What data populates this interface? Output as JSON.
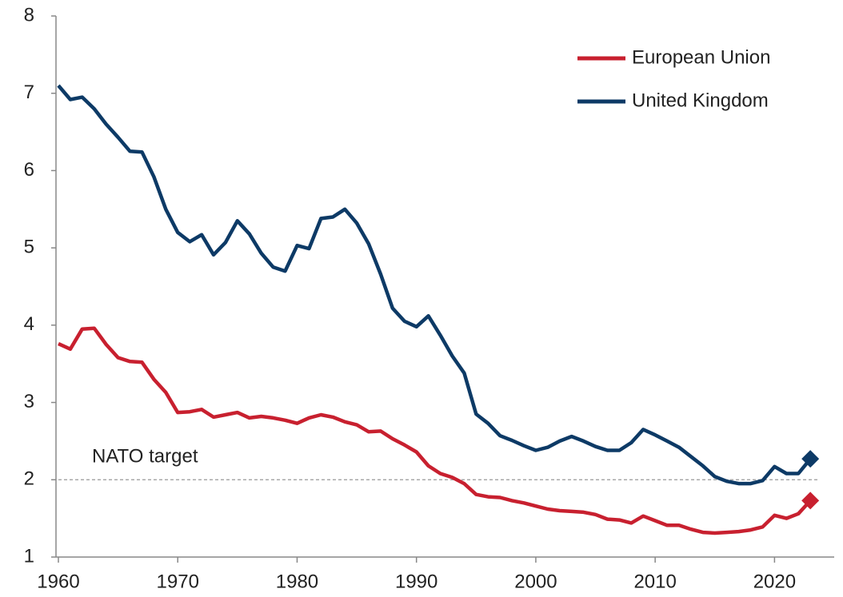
{
  "chart_data": {
    "type": "line",
    "x": [
      1960,
      1961,
      1962,
      1963,
      1964,
      1965,
      1966,
      1967,
      1968,
      1969,
      1970,
      1971,
      1972,
      1973,
      1974,
      1975,
      1976,
      1977,
      1978,
      1979,
      1980,
      1981,
      1982,
      1983,
      1984,
      1985,
      1986,
      1987,
      1988,
      1989,
      1990,
      1991,
      1992,
      1993,
      1994,
      1995,
      1996,
      1997,
      1998,
      1999,
      2000,
      2001,
      2002,
      2003,
      2004,
      2005,
      2006,
      2007,
      2008,
      2009,
      2010,
      2011,
      2012,
      2013,
      2014,
      2015,
      2016,
      2017,
      2018,
      2019,
      2020,
      2021,
      2022,
      2023
    ],
    "series": [
      {
        "name": "European Union",
        "color": "#c8202f",
        "values": [
          3.76,
          3.69,
          3.95,
          3.96,
          3.75,
          3.58,
          3.53,
          3.52,
          3.3,
          3.13,
          2.87,
          2.88,
          2.91,
          2.81,
          2.84,
          2.87,
          2.8,
          2.82,
          2.8,
          2.77,
          2.73,
          2.8,
          2.84,
          2.81,
          2.75,
          2.71,
          2.62,
          2.63,
          2.53,
          2.45,
          2.36,
          2.18,
          2.08,
          2.03,
          1.95,
          1.81,
          1.78,
          1.77,
          1.73,
          1.7,
          1.66,
          1.62,
          1.6,
          1.59,
          1.58,
          1.55,
          1.49,
          1.48,
          1.44,
          1.53,
          1.47,
          1.41,
          1.41,
          1.36,
          1.32,
          1.31,
          1.32,
          1.33,
          1.35,
          1.39,
          1.54,
          1.5,
          1.56,
          1.73
        ]
      },
      {
        "name": "United Kingdom",
        "color": "#0d3a66",
        "values": [
          7.1,
          6.92,
          6.95,
          6.8,
          6.6,
          6.43,
          6.25,
          6.24,
          5.92,
          5.5,
          5.2,
          5.08,
          5.17,
          4.91,
          5.07,
          5.35,
          5.18,
          4.93,
          4.75,
          4.7,
          5.03,
          4.99,
          5.38,
          5.4,
          5.5,
          5.32,
          5.05,
          4.66,
          4.22,
          4.05,
          3.98,
          4.12,
          3.87,
          3.6,
          3.38,
          2.85,
          2.73,
          2.57,
          2.51,
          2.44,
          2.38,
          2.42,
          2.5,
          2.56,
          2.5,
          2.43,
          2.38,
          2.38,
          2.48,
          2.65,
          2.58,
          2.5,
          2.42,
          2.3,
          2.18,
          2.04,
          1.98,
          1.95,
          1.95,
          1.99,
          2.17,
          2.08,
          2.08,
          2.27
        ]
      }
    ],
    "end_marker": "diamond",
    "reference_line": {
      "value": 2,
      "label": "NATO target"
    },
    "xlim": [
      1960,
      2025
    ],
    "xticks": [
      1960,
      1970,
      1980,
      1990,
      2000,
      2010,
      2020
    ],
    "ylim": [
      1,
      8
    ],
    "yticks": [
      1,
      2,
      3,
      4,
      5,
      6,
      7,
      8
    ],
    "legend": "top-right",
    "grid": false
  }
}
